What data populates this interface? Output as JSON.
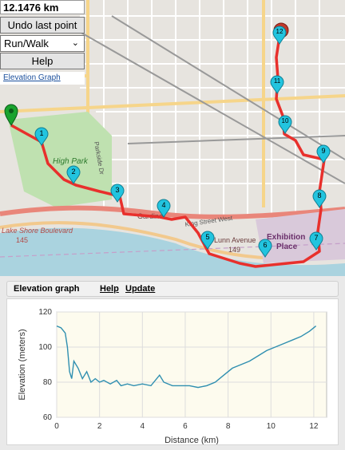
{
  "controls": {
    "distance": "12.1476 km",
    "undo_label": "Undo last point",
    "mode_value": "Run/Walk",
    "help_label": "Help",
    "elevation_link": "Elevation Graph"
  },
  "map": {
    "labels": {
      "high_park": "High Park",
      "parkside": "Parkside Dr",
      "gardiner": "Gardiner",
      "king": "King Street West",
      "lakeshore": "Lake Shore Boulevard",
      "lakeshore_num": "145",
      "queen": "Lunn Avenue",
      "queen_num": "149",
      "exhibition": "Exhibition",
      "exhibition2": "Place"
    },
    "markers": [
      "1",
      "2",
      "3",
      "4",
      "5",
      "6",
      "7",
      "8",
      "9",
      "10",
      "11",
      "12"
    ],
    "route_color": "#e8302c",
    "marker_color": "#22c4df",
    "start_color": "#1aa32e",
    "end_color": "#c0392b"
  },
  "elevation_panel": {
    "title": "Elevation graph",
    "help_link": "Help",
    "update_link": "Update"
  },
  "chart_data": {
    "type": "line",
    "xlabel": "Distance (km)",
    "ylabel": "Elevation (meters)",
    "xlim": [
      0,
      12.6
    ],
    "ylim": [
      60,
      120
    ],
    "xticks": [
      0,
      2,
      4,
      6,
      8,
      10,
      12
    ],
    "yticks": [
      60,
      80,
      100,
      120
    ],
    "color": "#2f8fb0",
    "x": [
      0,
      0.2,
      0.4,
      0.5,
      0.6,
      0.7,
      0.8,
      1.0,
      1.2,
      1.4,
      1.6,
      1.8,
      2.0,
      2.2,
      2.5,
      2.8,
      3.0,
      3.3,
      3.6,
      4.0,
      4.4,
      4.8,
      5.0,
      5.4,
      5.8,
      6.2,
      6.6,
      7.0,
      7.4,
      7.8,
      8.2,
      8.6,
      9.0,
      9.4,
      9.8,
      10.2,
      10.6,
      11.0,
      11.4,
      11.8,
      12.1
    ],
    "y": [
      112,
      111,
      108,
      100,
      86,
      82,
      92,
      88,
      82,
      86,
      80,
      82,
      80,
      81,
      79,
      81,
      78,
      79,
      78,
      79,
      78,
      84,
      80,
      78,
      78,
      78,
      77,
      78,
      80,
      84,
      88,
      90,
      92,
      95,
      98,
      100,
      102,
      104,
      106,
      109,
      112
    ]
  }
}
